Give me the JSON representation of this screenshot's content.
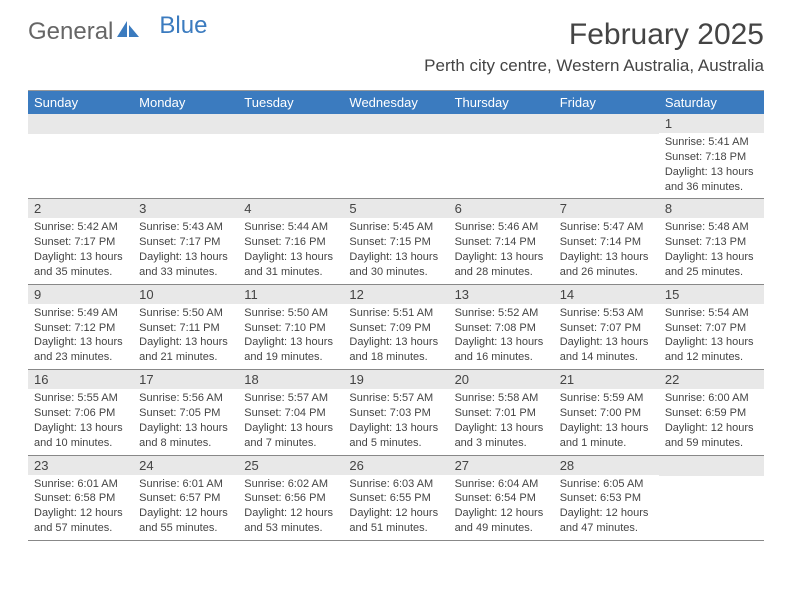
{
  "logo": {
    "part1": "General",
    "part2": "Blue"
  },
  "title": "February 2025",
  "location": "Perth city centre, Western Australia, Australia",
  "header_bg": "#3b7bbf",
  "daynum_bg": "#e8e8e8",
  "dow": [
    "Sunday",
    "Monday",
    "Tuesday",
    "Wednesday",
    "Thursday",
    "Friday",
    "Saturday"
  ],
  "weeks": [
    [
      null,
      null,
      null,
      null,
      null,
      null,
      {
        "n": "1",
        "sr": "Sunrise: 5:41 AM",
        "ss": "Sunset: 7:18 PM",
        "dl": "Daylight: 13 hours and 36 minutes."
      }
    ],
    [
      {
        "n": "2",
        "sr": "Sunrise: 5:42 AM",
        "ss": "Sunset: 7:17 PM",
        "dl": "Daylight: 13 hours and 35 minutes."
      },
      {
        "n": "3",
        "sr": "Sunrise: 5:43 AM",
        "ss": "Sunset: 7:17 PM",
        "dl": "Daylight: 13 hours and 33 minutes."
      },
      {
        "n": "4",
        "sr": "Sunrise: 5:44 AM",
        "ss": "Sunset: 7:16 PM",
        "dl": "Daylight: 13 hours and 31 minutes."
      },
      {
        "n": "5",
        "sr": "Sunrise: 5:45 AM",
        "ss": "Sunset: 7:15 PM",
        "dl": "Daylight: 13 hours and 30 minutes."
      },
      {
        "n": "6",
        "sr": "Sunrise: 5:46 AM",
        "ss": "Sunset: 7:14 PM",
        "dl": "Daylight: 13 hours and 28 minutes."
      },
      {
        "n": "7",
        "sr": "Sunrise: 5:47 AM",
        "ss": "Sunset: 7:14 PM",
        "dl": "Daylight: 13 hours and 26 minutes."
      },
      {
        "n": "8",
        "sr": "Sunrise: 5:48 AM",
        "ss": "Sunset: 7:13 PM",
        "dl": "Daylight: 13 hours and 25 minutes."
      }
    ],
    [
      {
        "n": "9",
        "sr": "Sunrise: 5:49 AM",
        "ss": "Sunset: 7:12 PM",
        "dl": "Daylight: 13 hours and 23 minutes."
      },
      {
        "n": "10",
        "sr": "Sunrise: 5:50 AM",
        "ss": "Sunset: 7:11 PM",
        "dl": "Daylight: 13 hours and 21 minutes."
      },
      {
        "n": "11",
        "sr": "Sunrise: 5:50 AM",
        "ss": "Sunset: 7:10 PM",
        "dl": "Daylight: 13 hours and 19 minutes."
      },
      {
        "n": "12",
        "sr": "Sunrise: 5:51 AM",
        "ss": "Sunset: 7:09 PM",
        "dl": "Daylight: 13 hours and 18 minutes."
      },
      {
        "n": "13",
        "sr": "Sunrise: 5:52 AM",
        "ss": "Sunset: 7:08 PM",
        "dl": "Daylight: 13 hours and 16 minutes."
      },
      {
        "n": "14",
        "sr": "Sunrise: 5:53 AM",
        "ss": "Sunset: 7:07 PM",
        "dl": "Daylight: 13 hours and 14 minutes."
      },
      {
        "n": "15",
        "sr": "Sunrise: 5:54 AM",
        "ss": "Sunset: 7:07 PM",
        "dl": "Daylight: 13 hours and 12 minutes."
      }
    ],
    [
      {
        "n": "16",
        "sr": "Sunrise: 5:55 AM",
        "ss": "Sunset: 7:06 PM",
        "dl": "Daylight: 13 hours and 10 minutes."
      },
      {
        "n": "17",
        "sr": "Sunrise: 5:56 AM",
        "ss": "Sunset: 7:05 PM",
        "dl": "Daylight: 13 hours and 8 minutes."
      },
      {
        "n": "18",
        "sr": "Sunrise: 5:57 AM",
        "ss": "Sunset: 7:04 PM",
        "dl": "Daylight: 13 hours and 7 minutes."
      },
      {
        "n": "19",
        "sr": "Sunrise: 5:57 AM",
        "ss": "Sunset: 7:03 PM",
        "dl": "Daylight: 13 hours and 5 minutes."
      },
      {
        "n": "20",
        "sr": "Sunrise: 5:58 AM",
        "ss": "Sunset: 7:01 PM",
        "dl": "Daylight: 13 hours and 3 minutes."
      },
      {
        "n": "21",
        "sr": "Sunrise: 5:59 AM",
        "ss": "Sunset: 7:00 PM",
        "dl": "Daylight: 13 hours and 1 minute."
      },
      {
        "n": "22",
        "sr": "Sunrise: 6:00 AM",
        "ss": "Sunset: 6:59 PM",
        "dl": "Daylight: 12 hours and 59 minutes."
      }
    ],
    [
      {
        "n": "23",
        "sr": "Sunrise: 6:01 AM",
        "ss": "Sunset: 6:58 PM",
        "dl": "Daylight: 12 hours and 57 minutes."
      },
      {
        "n": "24",
        "sr": "Sunrise: 6:01 AM",
        "ss": "Sunset: 6:57 PM",
        "dl": "Daylight: 12 hours and 55 minutes."
      },
      {
        "n": "25",
        "sr": "Sunrise: 6:02 AM",
        "ss": "Sunset: 6:56 PM",
        "dl": "Daylight: 12 hours and 53 minutes."
      },
      {
        "n": "26",
        "sr": "Sunrise: 6:03 AM",
        "ss": "Sunset: 6:55 PM",
        "dl": "Daylight: 12 hours and 51 minutes."
      },
      {
        "n": "27",
        "sr": "Sunrise: 6:04 AM",
        "ss": "Sunset: 6:54 PM",
        "dl": "Daylight: 12 hours and 49 minutes."
      },
      {
        "n": "28",
        "sr": "Sunrise: 6:05 AM",
        "ss": "Sunset: 6:53 PM",
        "dl": "Daylight: 12 hours and 47 minutes."
      },
      null
    ]
  ]
}
